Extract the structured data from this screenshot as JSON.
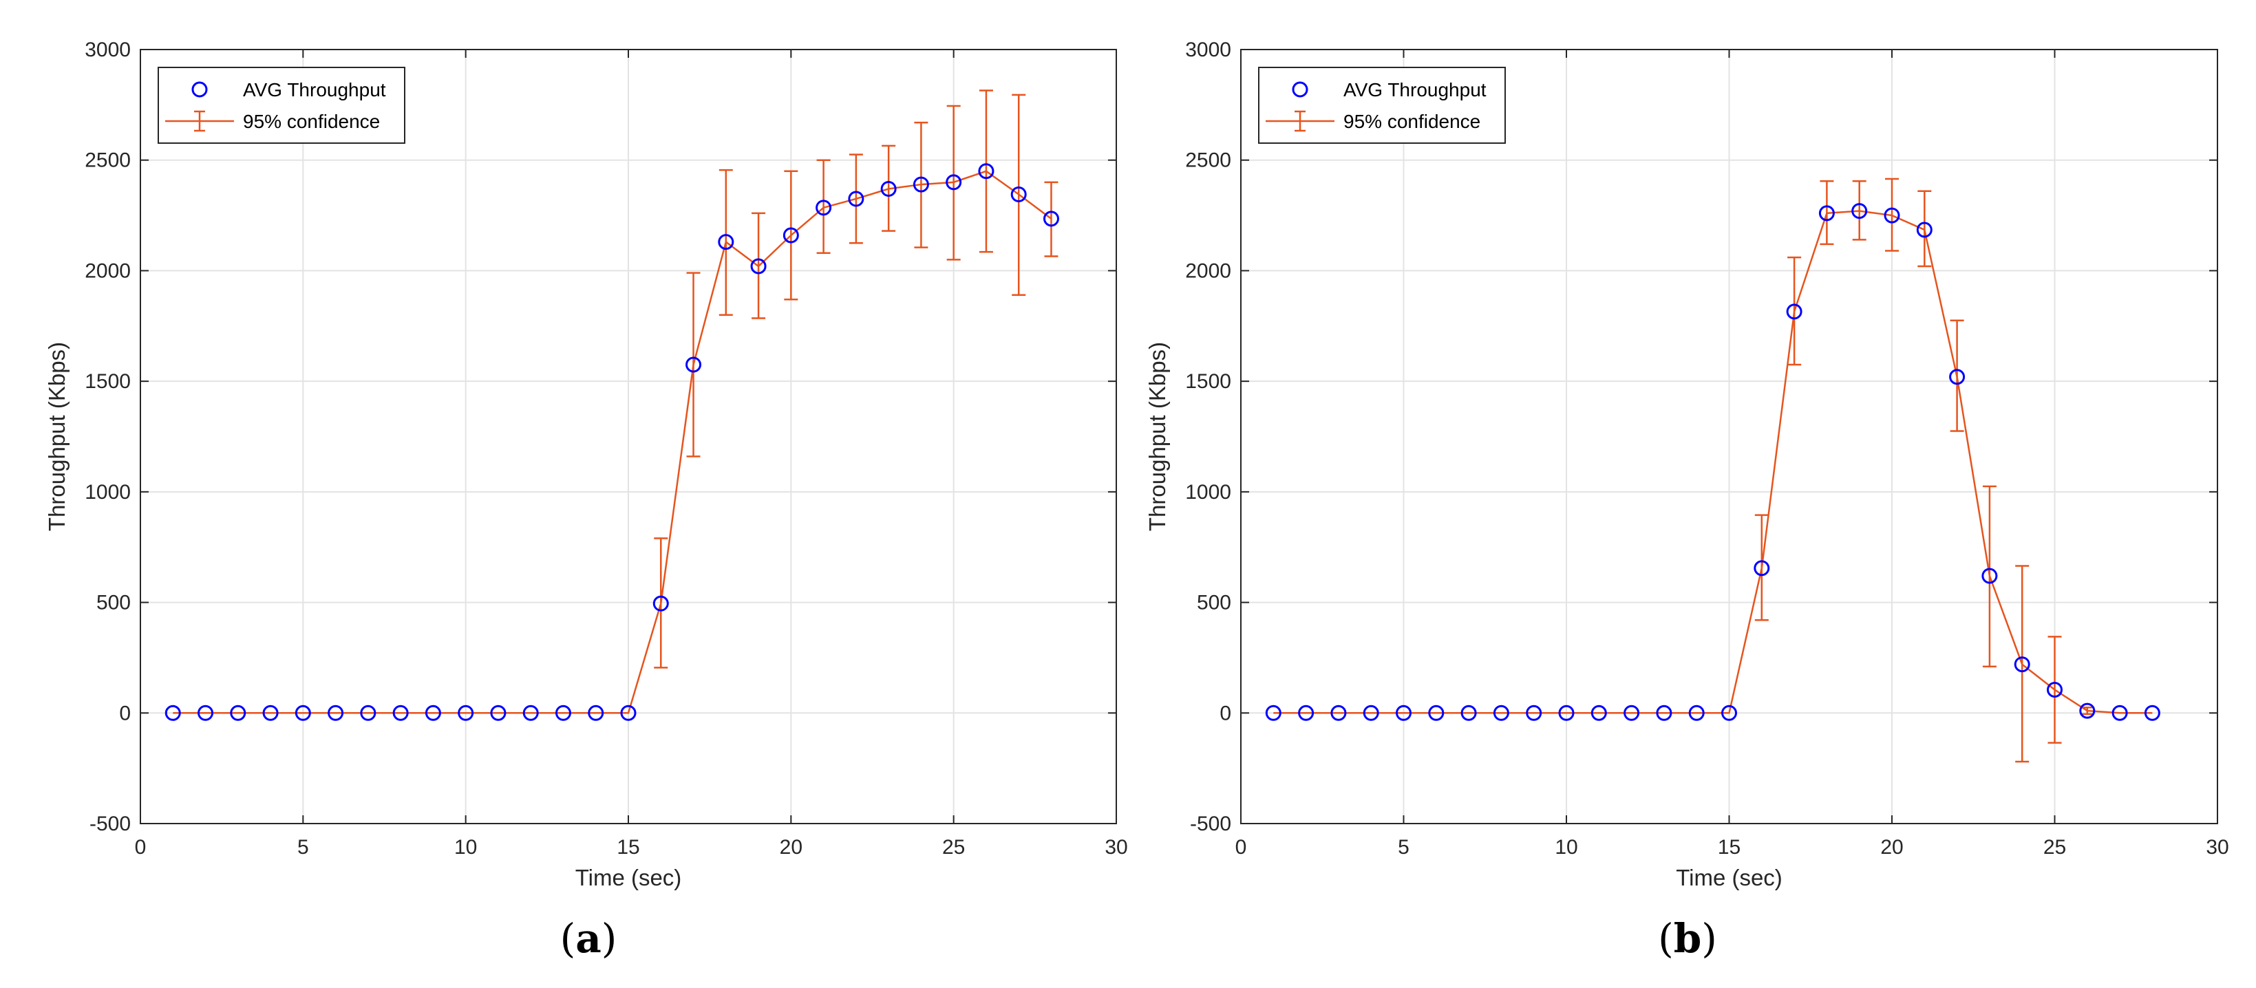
{
  "figure": {
    "panels": [
      {
        "caption_open": "(",
        "caption_letter": "a",
        "caption_close": ")"
      },
      {
        "caption_open": "(",
        "caption_letter": "b",
        "caption_close": ")"
      }
    ]
  },
  "colors": {
    "marker": "#0000ff",
    "line": "#e6541d",
    "grid": "#e3e3e3",
    "axis": "#262626"
  },
  "chart_data": [
    {
      "type": "line",
      "title": "",
      "xlabel": "Time (sec)",
      "ylabel": "Throughput (Kbps)",
      "xlim": [
        0,
        30
      ],
      "ylim": [
        -500,
        3000
      ],
      "xticks": [
        0,
        5,
        10,
        15,
        20,
        25,
        30
      ],
      "yticks": [
        -500,
        0,
        500,
        1000,
        1500,
        2000,
        2500,
        3000
      ],
      "grid": true,
      "legend": {
        "placement": "top-left",
        "entries": [
          "AVG Throughput",
          "95% confidence"
        ]
      },
      "x": [
        1,
        2,
        3,
        4,
        5,
        6,
        7,
        8,
        9,
        10,
        11,
        12,
        13,
        14,
        15,
        16,
        17,
        18,
        19,
        20,
        21,
        22,
        23,
        24,
        25,
        26,
        27,
        28
      ],
      "series": [
        {
          "name": "AVG Throughput",
          "values": [
            0,
            0,
            0,
            0,
            0,
            0,
            0,
            0,
            0,
            0,
            0,
            0,
            0,
            0,
            0,
            495,
            1575,
            2130,
            2020,
            2160,
            2285,
            2325,
            2370,
            2390,
            2400,
            2450,
            2345,
            2235
          ],
          "ci_lower": [
            0,
            0,
            0,
            0,
            0,
            0,
            0,
            0,
            0,
            0,
            0,
            0,
            0,
            0,
            0,
            205,
            1160,
            1800,
            1785,
            1870,
            2080,
            2125,
            2180,
            2105,
            2050,
            2085,
            1890,
            2065
          ],
          "ci_upper": [
            0,
            0,
            0,
            0,
            0,
            0,
            0,
            0,
            0,
            0,
            0,
            0,
            0,
            0,
            0,
            790,
            1990,
            2455,
            2260,
            2450,
            2500,
            2525,
            2565,
            2670,
            2745,
            2815,
            2795,
            2400
          ]
        }
      ]
    },
    {
      "type": "line",
      "title": "",
      "xlabel": "Time (sec)",
      "ylabel": "Throughput (Kbps)",
      "xlim": [
        0,
        30
      ],
      "ylim": [
        -500,
        3000
      ],
      "xticks": [
        0,
        5,
        10,
        15,
        20,
        25,
        30
      ],
      "yticks": [
        -500,
        0,
        500,
        1000,
        1500,
        2000,
        2500,
        3000
      ],
      "grid": true,
      "legend": {
        "placement": "top-left",
        "entries": [
          "AVG Throughput",
          "95% confidence"
        ]
      },
      "x": [
        1,
        2,
        3,
        4,
        5,
        6,
        7,
        8,
        9,
        10,
        11,
        12,
        13,
        14,
        15,
        16,
        17,
        18,
        19,
        20,
        21,
        22,
        23,
        24,
        25,
        26,
        27,
        28
      ],
      "series": [
        {
          "name": "AVG Throughput",
          "values": [
            0,
            0,
            0,
            0,
            0,
            0,
            0,
            0,
            0,
            0,
            0,
            0,
            0,
            0,
            0,
            655,
            1815,
            2260,
            2270,
            2250,
            2185,
            1520,
            620,
            220,
            105,
            10,
            0,
            0
          ],
          "ci_lower": [
            0,
            0,
            0,
            0,
            0,
            0,
            0,
            0,
            0,
            0,
            0,
            0,
            0,
            0,
            0,
            420,
            1575,
            2120,
            2140,
            2090,
            2020,
            1275,
            210,
            -220,
            -135,
            -5,
            0,
            0
          ],
          "ci_upper": [
            0,
            0,
            0,
            0,
            0,
            0,
            0,
            0,
            0,
            0,
            0,
            0,
            0,
            0,
            0,
            895,
            2060,
            2405,
            2405,
            2415,
            2360,
            1775,
            1025,
            665,
            345,
            25,
            0,
            0
          ]
        }
      ]
    }
  ]
}
